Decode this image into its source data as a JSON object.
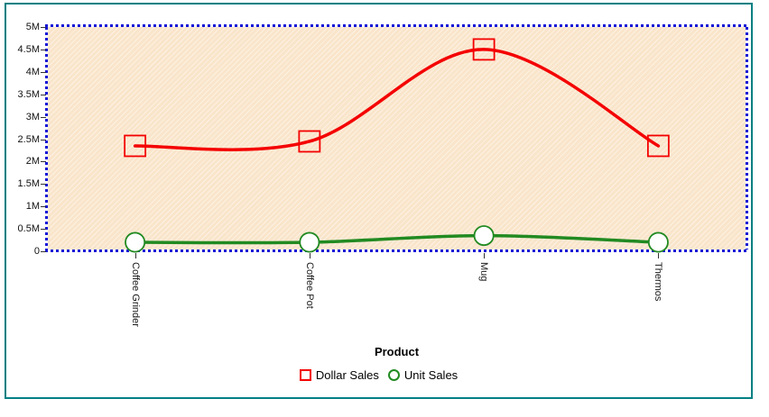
{
  "window": {
    "background": "#ffffff"
  },
  "frame": {
    "border_color": "#008083"
  },
  "plot": {
    "fill_base": "#f9e5cb",
    "fill_stripe": "#fdf1e1",
    "dotted_border_color": "#1414d6",
    "tick_color": "#333333"
  },
  "chart_data": {
    "type": "line",
    "categories": [
      "Coffee Grinder",
      "Coffee Pot",
      "Mug",
      "Thermos"
    ],
    "series": [
      {
        "name": "Dollar Sales",
        "values": [
          2350000,
          2450000,
          4500000,
          2350000
        ],
        "color": "#f40000",
        "marker": "square",
        "marker_fill": "none"
      },
      {
        "name": "Unit Sales",
        "values": [
          200000,
          200000,
          350000,
          200000
        ],
        "color": "#218a21",
        "marker": "circle",
        "marker_fill": "#ffffff"
      }
    ],
    "title": "",
    "xlabel": "Product",
    "ylabel": "",
    "ylim": [
      0,
      5000000
    ],
    "y_tick_step": 500000,
    "y_tick_labels": [
      "5M",
      "4.5M",
      "4M",
      "3.5M",
      "3M",
      "2.5M",
      "2M",
      "1.5M",
      "1M",
      "0.5M",
      "0"
    ],
    "legend_position": "bottom",
    "grid": false,
    "smooth": true
  }
}
